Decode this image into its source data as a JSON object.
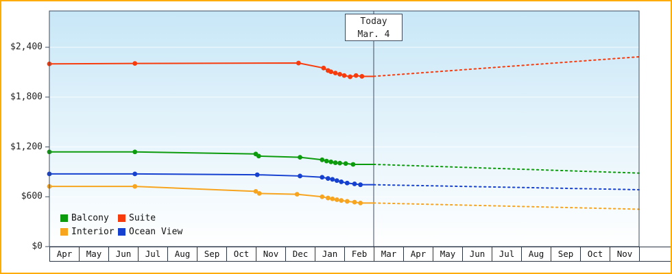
{
  "frame": {
    "border_color": "#ffac00"
  },
  "chart_data": {
    "type": "line",
    "title": "",
    "background_gradient": [
      "#c8e7f7",
      "#ffffff"
    ],
    "y_axis": {
      "ticks": [
        0,
        600,
        1200,
        1800,
        2400
      ],
      "tick_labels": [
        "$0",
        "$600",
        "$1,200",
        "$1,800",
        "$2,400"
      ],
      "ylim": [
        0,
        2700
      ]
    },
    "x_axis": {
      "months": [
        "Apr",
        "May",
        "Jun",
        "Jul",
        "Aug",
        "Sep",
        "Oct",
        "Nov",
        "Dec",
        "Jan",
        "Feb",
        "Mar",
        "Apr",
        "May",
        "Jun",
        "Jul",
        "Aug",
        "Sep",
        "Oct",
        "Nov"
      ]
    },
    "today_marker": {
      "line1": "Today",
      "line2": "Mar. 4",
      "month_position": 11
    },
    "legend": [
      {
        "label": "Balcony",
        "color": "#0c9b0c"
      },
      {
        "label": "Suite",
        "color": "#f83b0c"
      },
      {
        "label": "Interior",
        "color": "#f7a41f"
      },
      {
        "label": "Ocean View",
        "color": "#1540d0"
      }
    ],
    "series": [
      {
        "name": "Balcony",
        "color": "#0c9b0c",
        "history": [
          [
            0,
            1140
          ],
          [
            2.9,
            1140
          ],
          [
            7,
            1115
          ],
          [
            7.1,
            1090
          ],
          [
            8.5,
            1075
          ],
          [
            9.25,
            1045
          ],
          [
            9.4,
            1030
          ],
          [
            9.55,
            1020
          ],
          [
            9.7,
            1010
          ],
          [
            9.85,
            1005
          ],
          [
            10.05,
            1000
          ],
          [
            10.3,
            990
          ]
        ],
        "today_value": 990,
        "forecast": [
          [
            20,
            885
          ]
        ]
      },
      {
        "name": "Suite",
        "color": "#f83b0c",
        "history": [
          [
            0,
            2200
          ],
          [
            2.9,
            2205
          ],
          [
            8.45,
            2210
          ],
          [
            9.3,
            2150
          ],
          [
            9.45,
            2120
          ],
          [
            9.55,
            2105
          ],
          [
            9.7,
            2090
          ],
          [
            9.85,
            2075
          ],
          [
            10,
            2060
          ],
          [
            10.2,
            2045
          ],
          [
            10.4,
            2060
          ],
          [
            10.6,
            2050
          ]
        ],
        "today_value": 2050,
        "forecast": [
          [
            20,
            2285
          ]
        ]
      },
      {
        "name": "Interior",
        "color": "#f7a41f",
        "history": [
          [
            0,
            725
          ],
          [
            2.9,
            725
          ],
          [
            7,
            665
          ],
          [
            7.12,
            640
          ],
          [
            8.4,
            630
          ],
          [
            9.25,
            600
          ],
          [
            9.45,
            585
          ],
          [
            9.6,
            575
          ],
          [
            9.75,
            565
          ],
          [
            9.9,
            555
          ],
          [
            10.1,
            545
          ],
          [
            10.35,
            535
          ],
          [
            10.55,
            525
          ]
        ],
        "today_value": 525,
        "forecast": [
          [
            20,
            450
          ]
        ]
      },
      {
        "name": "Ocean View",
        "color": "#1540d0",
        "history": [
          [
            0,
            875
          ],
          [
            2.9,
            875
          ],
          [
            7.05,
            865
          ],
          [
            8.5,
            850
          ],
          [
            9.25,
            835
          ],
          [
            9.45,
            820
          ],
          [
            9.6,
            810
          ],
          [
            9.75,
            795
          ],
          [
            9.9,
            780
          ],
          [
            10.1,
            765
          ],
          [
            10.35,
            755
          ],
          [
            10.55,
            745
          ]
        ],
        "today_value": 745,
        "forecast": [
          [
            20,
            685
          ]
        ]
      }
    ]
  }
}
